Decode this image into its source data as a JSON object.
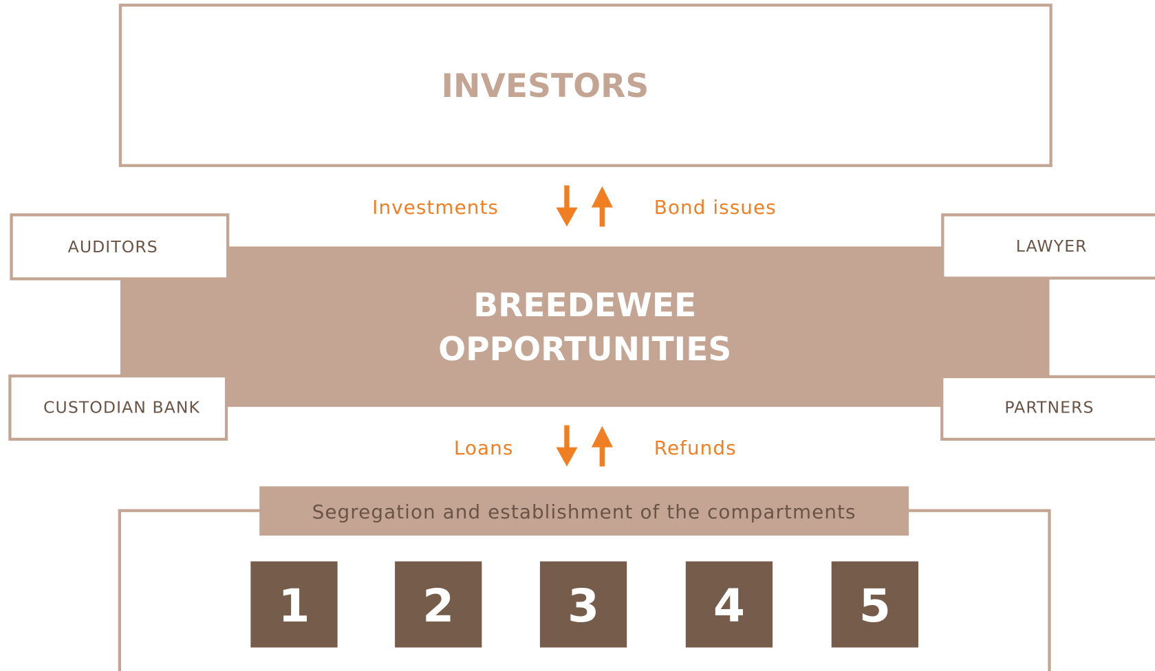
{
  "investors": "INVESTORS",
  "center": {
    "line1": "BREEDEWEE",
    "line2": "OPPORTUNITIES"
  },
  "top_flows": {
    "left": "Investments",
    "right": "Bond issues"
  },
  "bottom_flows": {
    "left": "Loans",
    "right": "Refunds"
  },
  "side_boxes": {
    "top_left": "AUDITORS",
    "bottom_left": "CUSTODIAN BANK",
    "top_right": "LAWYER",
    "bottom_right": "PARTNERS"
  },
  "compartments": {
    "title": "Segregation and establishment of the compartments",
    "items": [
      "1",
      "2",
      "3",
      "4",
      "5"
    ]
  }
}
